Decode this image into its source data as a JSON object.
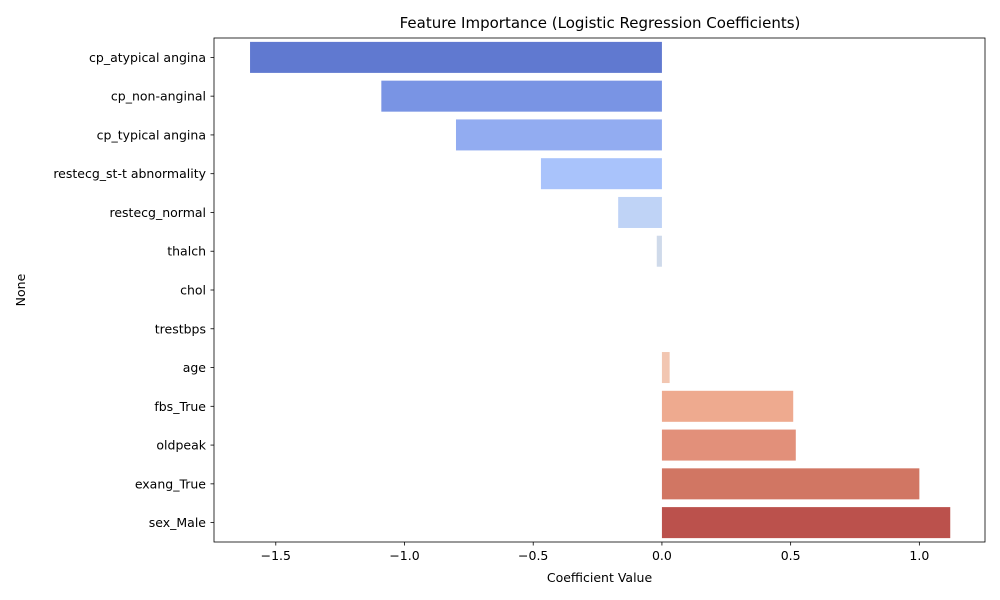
{
  "chart_data": {
    "type": "bar",
    "orientation": "horizontal",
    "title": "Feature Importance (Logistic Regression Coefficients)",
    "xlabel": "Coefficient Value",
    "ylabel": "None",
    "xlim": [
      -1.74,
      1.255
    ],
    "x_ticks": [
      -1.5,
      -1.0,
      -0.5,
      0.0,
      0.5,
      1.0
    ],
    "x_tick_labels": [
      "−1.5",
      "−1.0",
      "−0.5",
      "0.0",
      "0.5",
      "1.0"
    ],
    "grid": false,
    "legend": "none",
    "categories": [
      "cp_atypical angina",
      "cp_non-anginal",
      "cp_typical angina",
      "restecg_st-t abnormality",
      "restecg_normal",
      "thalch",
      "chol",
      "trestbps",
      "age",
      "fbs_True",
      "oldpeak",
      "exang_True",
      "sex_Male"
    ],
    "values": [
      -1.6,
      -1.09,
      -0.8,
      -0.47,
      -0.17,
      -0.02,
      0.0,
      0.0,
      0.03,
      0.51,
      0.52,
      1.0,
      1.12
    ],
    "colors": [
      "#6079d0",
      "#7994e4",
      "#92acf1",
      "#a9c3fb",
      "#bfd3f6",
      "#cfdaea",
      "#dedcdb",
      "#e9d6cb",
      "#f2c6b1",
      "#eeaa8f",
      "#e2907a",
      "#d17663",
      "#bb514c"
    ]
  }
}
